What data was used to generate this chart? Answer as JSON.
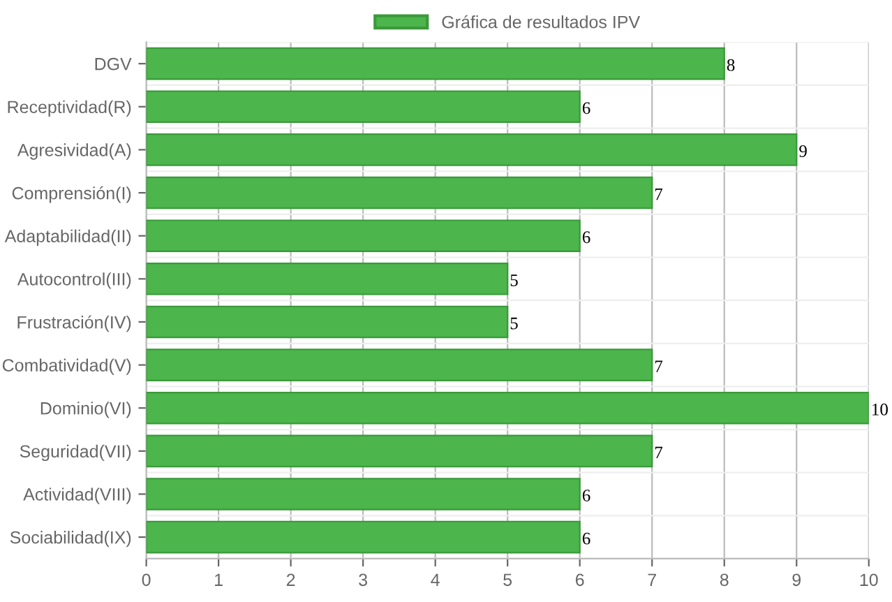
{
  "chart_data": {
    "type": "bar",
    "orientation": "horizontal",
    "categories": [
      "DGV",
      "Receptividad(R)",
      "Agresividad(A)",
      "Comprensión(I)",
      "Adaptabilidad(II)",
      "Autocontrol(III)",
      "Frustración(IV)",
      "Combatividad(V)",
      "Dominio(VI)",
      "Seguridad(VII)",
      "Actividad(VIII)",
      "Sociabilidad(IX)"
    ],
    "series": [
      {
        "name": "Gráfica de resultados IPV",
        "color": "#4cb54c",
        "values": [
          8,
          6,
          9,
          7,
          6,
          5,
          5,
          7,
          10,
          7,
          6,
          6
        ]
      }
    ],
    "xlim": [
      0,
      10
    ],
    "xticks": [
      0,
      1,
      2,
      3,
      4,
      5,
      6,
      7,
      8,
      9,
      10
    ],
    "grid": true,
    "legend": "top",
    "data_labels": true
  }
}
